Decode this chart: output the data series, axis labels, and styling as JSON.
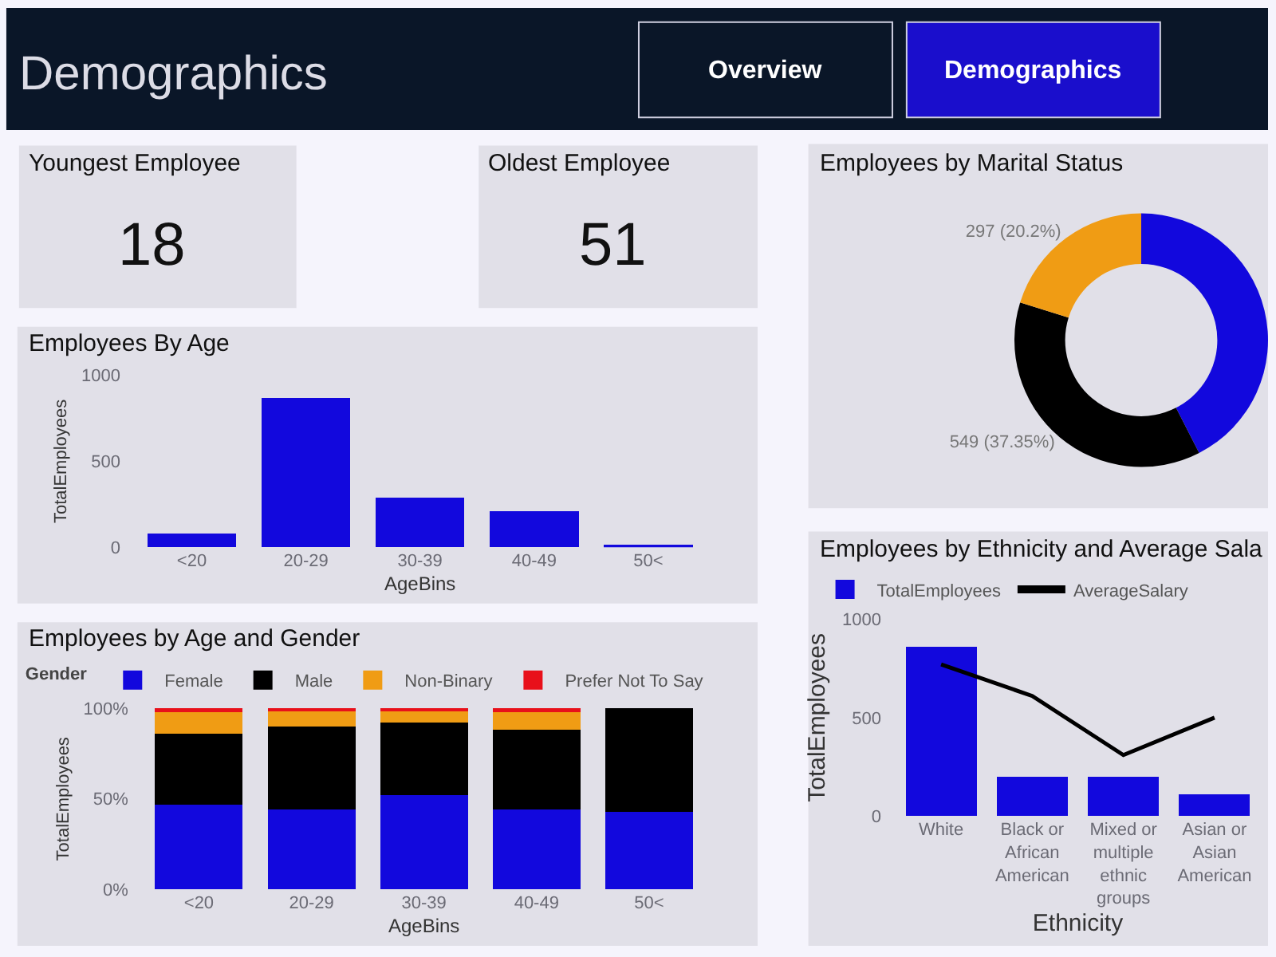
{
  "chart_data": [
    {
      "type": "other",
      "title": "Demographics",
      "annotations": [
        "Overview",
        "Demographics"
      ]
    },
    {
      "type": "other",
      "title": "Youngest Employee",
      "annotations": [
        "18"
      ]
    },
    {
      "type": "other",
      "title": "Oldest Employee",
      "annotations": [
        "51"
      ]
    },
    {
      "type": "bar",
      "title": "Employees By Age",
      "xlabel": "AgeBins",
      "ylabel": "TotalEmployees",
      "categories": [
        "<20",
        "20-29",
        "30-39",
        "40-49",
        "50<"
      ],
      "values": [
        80,
        870,
        290,
        210,
        10
      ],
      "color": "#1208dd",
      "ylim": [
        0,
        1000
      ],
      "yticks": [
        0,
        500,
        1000
      ]
    },
    {
      "type": "bar",
      "title": "Employees by Age and Gender",
      "xlabel": "AgeBins",
      "ylabel": "TotalEmployees",
      "legend_title": "Gender",
      "legend": "top left",
      "stacked": true,
      "categories": [
        "<20",
        "20-29",
        "30-39",
        "40-49",
        "50<"
      ],
      "series": [
        {
          "name": "Female",
          "color": "#1208dd",
          "values": [
            47,
            44,
            52,
            44,
            43
          ]
        },
        {
          "name": "Male",
          "color": "#000000",
          "values": [
            39,
            46,
            40,
            44,
            57
          ]
        },
        {
          "name": "Non-Binary",
          "color": "#f09c14",
          "values": [
            12,
            9,
            7,
            10,
            0
          ]
        },
        {
          "name": "Prefer Not To Say",
          "color": "#e8101a",
          "values": [
            2,
            1,
            1,
            2,
            0
          ]
        }
      ],
      "ylim": [
        0,
        100
      ],
      "yticks": [
        {
          "value": 0,
          "label": "0%"
        },
        {
          "value": 50,
          "label": "50%"
        },
        {
          "value": 100,
          "label": "100%"
        }
      ]
    },
    {
      "type": "donut",
      "title": "Employees by Marital Status",
      "categories": [
        null,
        null,
        null
      ],
      "values": [
        624,
        549,
        297
      ],
      "colors": [
        "#1208dd",
        "#000000",
        "#f09c14"
      ],
      "value_labels": [
        null,
        "549 (37.35%)",
        "297 (20.2%)"
      ]
    },
    {
      "type": "bar",
      "title": "Employees by Ethnicity and Average Sala",
      "xlabel": "Ethnicity",
      "ylabel": "TotalEmployees",
      "legend": "top left",
      "categories": [
        "White",
        "Black or African American",
        "Mixed or multiple ethnic groups",
        "Asian or Asian American"
      ],
      "series": [
        {
          "name": "TotalEmployees",
          "color": "#1208dd",
          "values": [
            860,
            200,
            200,
            110
          ]
        },
        {
          "name": "AverageSalary",
          "color": "#000000",
          "type": "line",
          "values": [
            770,
            610,
            310,
            500
          ]
        }
      ],
      "ylim": [
        0,
        1000
      ],
      "yticks": [
        0,
        500,
        1000
      ]
    }
  ]
}
